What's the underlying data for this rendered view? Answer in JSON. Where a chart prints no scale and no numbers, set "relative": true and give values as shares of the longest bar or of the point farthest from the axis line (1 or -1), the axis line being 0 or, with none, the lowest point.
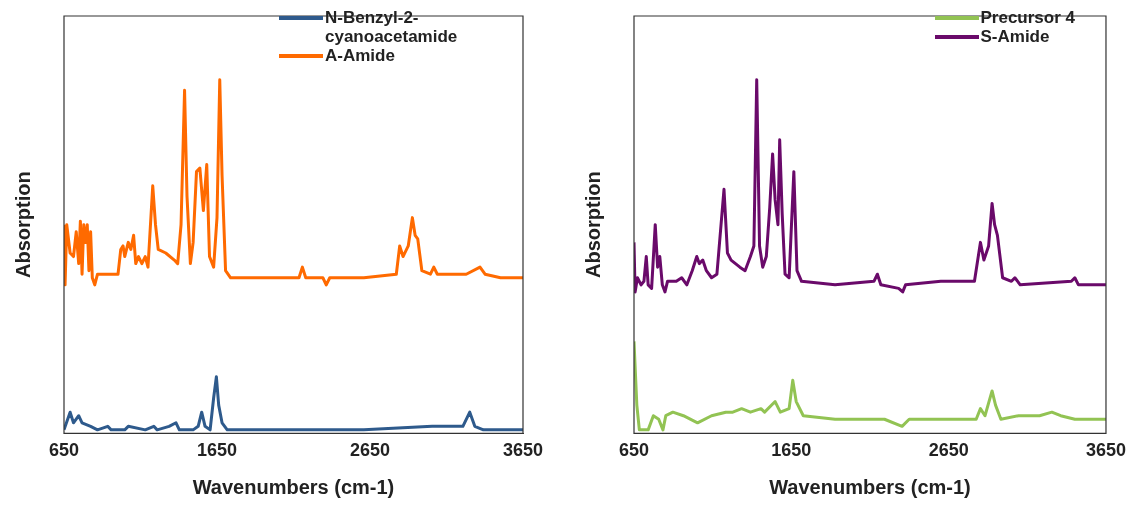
{
  "chart_data": [
    {
      "type": "line",
      "relative": true,
      "xlabel": "Wavenumbers (cm-1)",
      "ylabel": "Absorption",
      "xlim": [
        650,
        3650
      ],
      "xticks": [
        650,
        1650,
        2650,
        3650
      ],
      "legend": "top right",
      "marker": "none",
      "series": [
        {
          "name": "N-Benzyl-2-cyanoacetamide",
          "color": "#2e5a8c",
          "x": [
            650,
            690,
            712,
            746,
            768,
            824,
            869,
            936,
            958,
            1047,
            1070,
            1181,
            1237,
            1259,
            1337,
            1382,
            1404,
            1494,
            1527,
            1550,
            1572,
            1605,
            1628,
            1646,
            1661,
            1683,
            1717,
            1940,
            2253,
            2610,
            3056,
            3257,
            3302,
            3335,
            3391,
            3650
          ],
          "values": [
            0.01,
            0.06,
            0.03,
            0.05,
            0.03,
            0.02,
            0.01,
            0.02,
            0.01,
            0.01,
            0.02,
            0.01,
            0.02,
            0.01,
            0.02,
            0.03,
            0.01,
            0.01,
            0.02,
            0.06,
            0.02,
            0.01,
            0.1,
            0.16,
            0.08,
            0.03,
            0.01,
            0.01,
            0.01,
            0.01,
            0.02,
            0.02,
            0.06,
            0.02,
            0.01,
            0.01
          ]
        },
        {
          "name": "A-Amide",
          "color": "#ff6a00",
          "x": [
            650,
            657,
            668,
            690,
            712,
            730,
            746,
            757,
            768,
            779,
            791,
            802,
            813,
            824,
            835,
            851,
            869,
            913,
            958,
            1003,
            1021,
            1036,
            1047,
            1070,
            1087,
            1105,
            1119,
            1137,
            1159,
            1181,
            1199,
            1230,
            1248,
            1266,
            1315,
            1371,
            1393,
            1415,
            1438,
            1454,
            1476,
            1494,
            1516,
            1538,
            1561,
            1583,
            1601,
            1628,
            1650,
            1668,
            1683,
            1706,
            1739,
            1940,
            2186,
            2208,
            2230,
            2342,
            2364,
            2387,
            2610,
            2822,
            2844,
            2866,
            2900,
            2927,
            2945,
            2962,
            2989,
            3045,
            3067,
            3090,
            3279,
            3369,
            3402,
            3503,
            3650
          ],
          "values": [
            0.59,
            0.42,
            0.59,
            0.51,
            0.5,
            0.57,
            0.48,
            0.6,
            0.45,
            0.59,
            0.54,
            0.59,
            0.46,
            0.57,
            0.44,
            0.42,
            0.45,
            0.45,
            0.45,
            0.45,
            0.52,
            0.53,
            0.5,
            0.54,
            0.52,
            0.56,
            0.48,
            0.5,
            0.48,
            0.5,
            0.47,
            0.7,
            0.59,
            0.52,
            0.51,
            0.49,
            0.48,
            0.59,
            0.97,
            0.67,
            0.48,
            0.54,
            0.74,
            0.75,
            0.63,
            0.76,
            0.5,
            0.47,
            0.61,
            1,
            0.73,
            0.46,
            0.44,
            0.44,
            0.44,
            0.47,
            0.44,
            0.44,
            0.42,
            0.44,
            0.44,
            0.45,
            0.53,
            0.5,
            0.53,
            0.61,
            0.56,
            0.55,
            0.46,
            0.45,
            0.47,
            0.45,
            0.45,
            0.47,
            0.45,
            0.44,
            0.44
          ]
        }
      ]
    },
    {
      "type": "line",
      "relative": true,
      "xlabel": "Wavenumbers (cm-1)",
      "ylabel": "Absorption",
      "xlim": [
        650,
        3650
      ],
      "xticks": [
        650,
        1650,
        2650,
        3650
      ],
      "legend": "top right",
      "marker": "none",
      "series": [
        {
          "name": "Precursor 4",
          "color": "#92c353",
          "x": [
            650,
            668,
            684,
            740,
            773,
            807,
            834,
            852,
            897,
            964,
            1054,
            1143,
            1233,
            1278,
            1334,
            1390,
            1457,
            1480,
            1547,
            1580,
            1636,
            1659,
            1681,
            1726,
            1928,
            2242,
            2354,
            2399,
            2825,
            2852,
            2881,
            2926,
            2948,
            2982,
            3094,
            3228,
            3306,
            3362,
            3452,
            3650
          ],
          "values": [
            0.26,
            0.08,
            0.01,
            0.01,
            0.05,
            0.04,
            0.01,
            0.05,
            0.06,
            0.05,
            0.03,
            0.05,
            0.06,
            0.06,
            0.07,
            0.06,
            0.07,
            0.06,
            0.09,
            0.06,
            0.07,
            0.15,
            0.09,
            0.05,
            0.04,
            0.04,
            0.02,
            0.04,
            0.04,
            0.07,
            0.05,
            0.12,
            0.08,
            0.04,
            0.05,
            0.05,
            0.06,
            0.05,
            0.04,
            0.04
          ]
        },
        {
          "name": "S-Amide",
          "color": "#6a0a6a",
          "x": [
            650,
            657,
            672,
            695,
            713,
            728,
            740,
            762,
            785,
            800,
            814,
            830,
            847,
            863,
            919,
            953,
            986,
            1020,
            1049,
            1065,
            1087,
            1110,
            1143,
            1177,
            1222,
            1244,
            1267,
            1323,
            1356,
            1390,
            1412,
            1430,
            1448,
            1468,
            1491,
            1513,
            1531,
            1547,
            1565,
            1576,
            1592,
            1610,
            1636,
            1666,
            1686,
            1715,
            1928,
            2175,
            2197,
            2219,
            2332,
            2358,
            2376,
            2600,
            2814,
            2852,
            2874,
            2904,
            2926,
            2942,
            2960,
            2993,
            3049,
            3071,
            3105,
            3430,
            3452,
            3475,
            3650
          ],
          "values": [
            0.54,
            0.4,
            0.44,
            0.42,
            0.43,
            0.5,
            0.42,
            0.41,
            0.59,
            0.47,
            0.5,
            0.42,
            0.4,
            0.43,
            0.43,
            0.44,
            0.42,
            0.46,
            0.5,
            0.48,
            0.49,
            0.46,
            0.44,
            0.45,
            0.69,
            0.51,
            0.49,
            0.47,
            0.46,
            0.5,
            0.53,
            1,
            0.53,
            0.47,
            0.5,
            0.64,
            0.79,
            0.66,
            0.59,
            0.83,
            0.62,
            0.45,
            0.44,
            0.74,
            0.46,
            0.43,
            0.42,
            0.43,
            0.45,
            0.42,
            0.41,
            0.4,
            0.42,
            0.43,
            0.43,
            0.54,
            0.49,
            0.53,
            0.65,
            0.59,
            0.56,
            0.44,
            0.43,
            0.44,
            0.42,
            0.43,
            0.44,
            0.42,
            0.42
          ]
        }
      ]
    }
  ]
}
